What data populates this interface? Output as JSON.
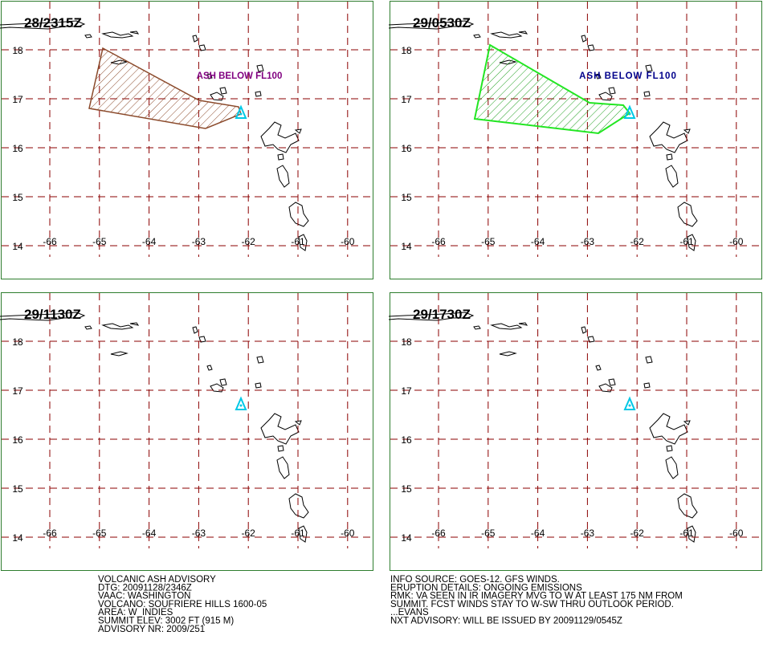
{
  "lat_labels": [
    18,
    17,
    16,
    15,
    14
  ],
  "lon_labels": [
    -66,
    -65,
    -64,
    -63,
    -62,
    -61,
    -60
  ],
  "panels": [
    {
      "time": "28/2315Z",
      "label": "ASH BELOW FL100",
      "label_color": "#800080",
      "polygon_color": "#8b4a2b"
    },
    {
      "time": "29/0530Z",
      "label": "ASH BELOW FL100",
      "label_color": "#00008b",
      "polygon_color": "#22e622"
    },
    {
      "time": "29/1130Z"
    },
    {
      "time": "29/1730Z"
    }
  ],
  "advisory_left": [
    "VOLCANIC ASH ADVISORY",
    "DTG: 20091128/2346Z",
    "VAAC: WASHINGTON",
    "VOLCANO: SOUFRIERE HILLS 1600-05",
    "AREA: W_INDIES",
    "SUMMIT ELEV: 3002 FT (915 M)",
    "ADVISORY NR: 2009/251"
  ],
  "advisory_right": [
    "INFO SOURCE: GOES-12. GFS WINDS.",
    "ERUPTION DETAILS: ONGOING EMISSIONS",
    "RMK: VA SEEN IN IR IMAGERY MVG TO W AT LEAST 175 NM FROM",
    "SUMMIT. FCST WINDS STAY TO W-SW THRU OUTLOOK PERIOD.",
    "...EVANS",
    "NXT ADVISORY: WILL BE ISSUED BY 20091129/0545Z"
  ]
}
